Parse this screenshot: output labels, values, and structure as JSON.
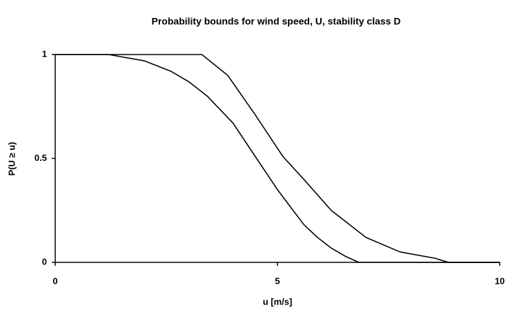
{
  "chart_data": {
    "type": "line",
    "title": "Probability bounds for wind speed, U, stability class D",
    "xlabel": "u [m/s]",
    "ylabel": "P(U ≥ u)",
    "xlim": [
      0,
      10
    ],
    "xticks": [
      0,
      5,
      10
    ],
    "ylim": [
      0,
      1
    ],
    "yticks": [
      0,
      0.5,
      1
    ],
    "grid": false,
    "series": [
      {
        "color": "#000000",
        "x": [
          0,
          1.2,
          2.0,
          2.6,
          3.0,
          3.42,
          4.0,
          4.53,
          5.0,
          5.28,
          5.6,
          5.9,
          6.2,
          6.52,
          6.83,
          10
        ],
        "values": [
          1,
          1,
          0.97,
          0.92,
          0.87,
          0.8,
          0.67,
          0.5,
          0.35,
          0.27,
          0.18,
          0.12,
          0.07,
          0.03,
          0,
          0
        ]
      },
      {
        "color": "#000000",
        "x": [
          0,
          3.3,
          3.88,
          4.5,
          5.12,
          5.59,
          6.21,
          6.99,
          7.76,
          8.54,
          8.85,
          10
        ],
        "values": [
          1,
          1,
          0.9,
          0.71,
          0.51,
          0.4,
          0.25,
          0.12,
          0.05,
          0.02,
          0,
          0
        ]
      }
    ]
  }
}
